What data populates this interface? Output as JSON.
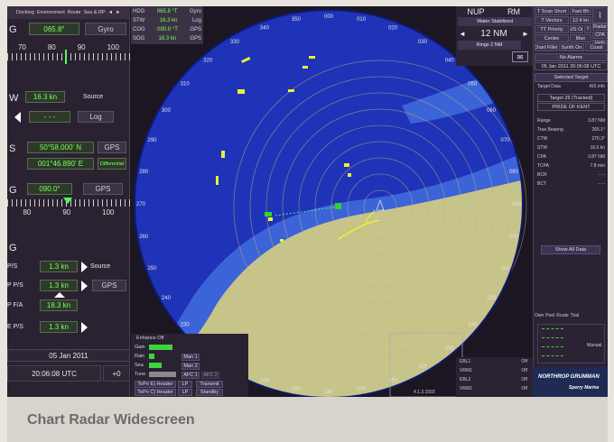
{
  "caption": "Chart Radar Widescreen",
  "top_tabs": [
    "Docking",
    "Environment",
    "Route",
    "Sea & RP",
    "◄",
    "►"
  ],
  "heading": {
    "label": "G",
    "value": "065.8°",
    "source": "Gyro",
    "tape": [
      "70",
      "80",
      "90",
      "100"
    ]
  },
  "speed": {
    "label": "W",
    "value": "16.3 kn",
    "source_label": "Source",
    "log_value": "- - -",
    "log_label": "Log"
  },
  "position": {
    "label": "S",
    "lat": "50°58.000' N",
    "lon": "001°46.890' E",
    "src": "GPS",
    "mode": "Differential"
  },
  "course": {
    "label": "G",
    "value": "090.0°",
    "src": "GPS",
    "tape": [
      "80",
      "90",
      "100"
    ]
  },
  "drift": {
    "label": "G",
    "rows": [
      {
        "label": "P/S",
        "value": "1.3 kn",
        "extra": "Source"
      },
      {
        "label": "P P/S",
        "value": "1.3 kn",
        "extra": "GPS"
      },
      {
        "label": "P F/A",
        "value": "18.3 kn",
        "extra": ""
      },
      {
        "label": "E P/S",
        "value": "1.3 kn",
        "extra": ""
      }
    ]
  },
  "date": "05 Jan 2011",
  "time": "20:06:08 UTC",
  "tz": "+0",
  "status_mini": [
    {
      "label": "HDG",
      "value": "065.8 °T",
      "src": "Gyro"
    },
    {
      "label": "STW",
      "value": "16.3 kn",
      "src": "Log"
    },
    {
      "label": "COG",
      "value": "090.0 °T",
      "src": "GPS"
    },
    {
      "label": "SOG",
      "value": "18.3 kn",
      "src": "GPS"
    }
  ],
  "display": {
    "mode": "NUP",
    "motion": "RM",
    "stab": "Water Stabilized",
    "range": "12 NM",
    "rings": "Rings 2 NM"
  },
  "bearing_labels": [
    "000",
    "010",
    "020",
    "030",
    "040",
    "050",
    "060",
    "070",
    "080",
    "090",
    "100",
    "110",
    "120",
    "130",
    "140",
    "150",
    "160",
    "170",
    "180",
    "190",
    "200",
    "210",
    "220",
    "230",
    "240",
    "250",
    "260",
    "270",
    "280",
    "290",
    "300",
    "310",
    "320",
    "330",
    "340",
    "350"
  ],
  "right_buttons": [
    [
      "T Scan Short",
      "Fast Bh"
    ],
    [
      "T Vectors",
      "12.4 kn",
      "Radar"
    ],
    [
      "TT Priority",
      "AIS On",
      "?",
      "CPA"
    ],
    [
      "Centre",
      "Max",
      "Help"
    ],
    [
      "Chart Filled",
      "Synth On",
      "Coast"
    ]
  ],
  "alarm": "No Alarms",
  "alarm_time": "05 Jan 2011 20:06:08 UTC",
  "target": {
    "header": "Selected Target",
    "data_label": "Target Data",
    "data_val": "AIS info",
    "name_id": "Target 26 (Tracked)",
    "name": "PRIDE OF KENT",
    "rows": [
      {
        "k": "Range",
        "v": "3.87 NM"
      },
      {
        "k": "True Bearing",
        "v": "265.1°"
      },
      {
        "k": "CTW",
        "v": "270.3°"
      },
      {
        "k": "STW",
        "v": "16.5 kn"
      },
      {
        "k": "CPA",
        "v": "3.87 NM"
      },
      {
        "k": "TCPA",
        "v": "7.8 min"
      },
      {
        "k": "BCR",
        "v": "- - -"
      },
      {
        "k": "BCT",
        "v": "- - -"
      }
    ],
    "show_all": "Show All Data"
  },
  "right_tabs": [
    "Own",
    "Pool",
    "Route",
    "Trial"
  ],
  "right_small": "Manual",
  "bottom_left": {
    "title": "Enhance Off",
    "rows": [
      "Gain",
      "Rain",
      "Sea",
      "Tune"
    ],
    "buttons": [
      "Man 1",
      "Man 2",
      "AFC 1",
      "AFC 2"
    ],
    "mode1": "ToPo E) Header",
    "mode1b": "LP",
    "mode1c": "Transmit",
    "mode2": "ToPo C) Header",
    "mode2b": "LP",
    "mode2c": "Standby"
  },
  "bottom_right": [
    {
      "k": "EBL1",
      "v": "Off"
    },
    {
      "k": "VRM1",
      "v": "Off"
    },
    {
      "k": "EBL2",
      "v": "Off"
    },
    {
      "k": "VRM2",
      "v": "Off"
    }
  ],
  "version": "4.1.3.1503",
  "brand": "NORTHROP GRUMMAN",
  "brand_sub": "Sperry Marine",
  "colors": {
    "sea_deep": "#1e33b8",
    "sea_shallow": "#3b64d8",
    "land": "#c7c48a",
    "echo": "#e8f23a",
    "ui_bg": "#2a2230",
    "ui_text_green": "#7cff5a"
  }
}
